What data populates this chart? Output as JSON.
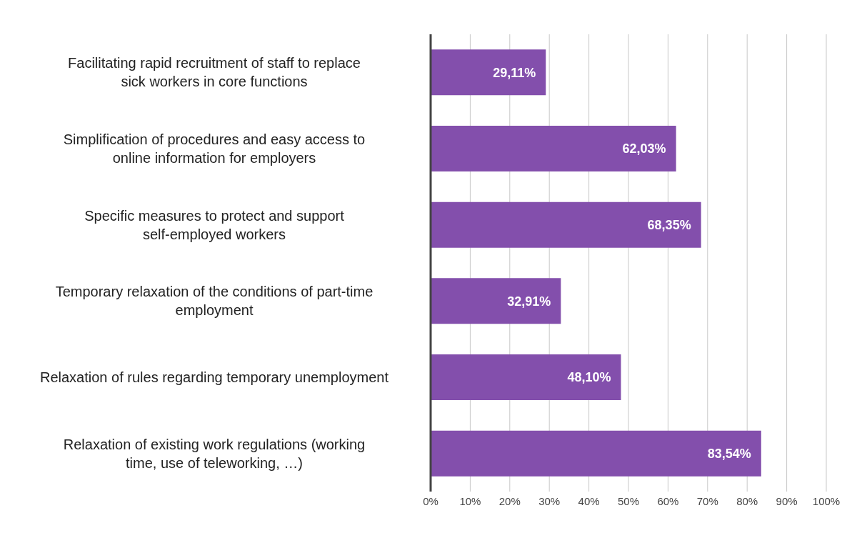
{
  "chart_data": {
    "type": "bar",
    "orientation": "horizontal",
    "categories": [
      "Facilitating rapid recruitment of staff to replace sick workers in core functions",
      "Simplification of procedures and easy access to online information for employers",
      "Specific measures to protect and support self-employed workers",
      "Temporary relaxation of the conditions of part-time employment",
      "Relaxation of rules regarding temporary unemployment",
      "Relaxation of existing work regulations (working time, use of teleworking, …)"
    ],
    "values": [
      29.11,
      62.03,
      68.35,
      32.91,
      48.1,
      83.54
    ],
    "value_labels": [
      "29,11%",
      "62,03%",
      "68,35%",
      "32,91%",
      "48,10%",
      "83,54%"
    ],
    "color": "#834fac",
    "xlim": [
      0,
      100
    ],
    "xticks": [
      {
        "value": 0,
        "label": "0%"
      },
      {
        "value": 10,
        "label": "10%"
      },
      {
        "value": 20,
        "label": "20%"
      },
      {
        "value": 30,
        "label": "30%"
      },
      {
        "value": 40,
        "label": "40%"
      },
      {
        "value": 50,
        "label": "50%"
      },
      {
        "value": 60,
        "label": "60%"
      },
      {
        "value": 70,
        "label": "70%"
      },
      {
        "value": 80,
        "label": "80%"
      },
      {
        "value": 90,
        "label": "90%"
      },
      {
        "value": 100,
        "label": "100%"
      }
    ],
    "grid": "x",
    "legend": false
  }
}
